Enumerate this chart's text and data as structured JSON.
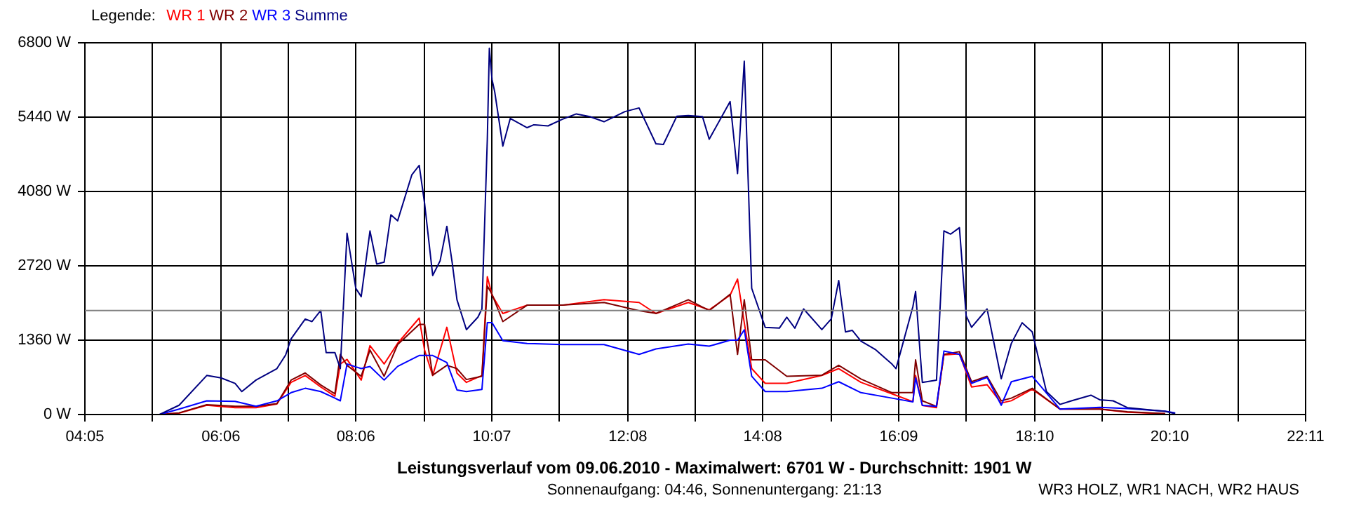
{
  "chart_data": {
    "type": "line",
    "title": "Leistungsverlauf vom 09.06.2010 - Maximalwert: 6701 W - Durchschnitt: 1901 W",
    "subtitle": "Sonnenaufgang: 04:46, Sonnenuntergang: 21:13",
    "legend_title": "Legende:",
    "grid": true,
    "line_style": "solid",
    "annotations": [
      "WR3 HOLZ, WR1 NACH, WR2 HAUS"
    ],
    "xlim": [
      4.083,
      22.183
    ],
    "xticks": [
      {
        "value": 4.083,
        "label": "04:05"
      },
      {
        "value": 5.092,
        "label": null
      },
      {
        "value": 6.1,
        "label": "06:06"
      },
      {
        "value": 7.1,
        "label": null
      },
      {
        "value": 8.1,
        "label": "08:06"
      },
      {
        "value": 9.108,
        "label": null
      },
      {
        "value": 10.117,
        "label": "10:07"
      },
      {
        "value": 11.125,
        "label": null
      },
      {
        "value": 12.133,
        "label": "12:08"
      },
      {
        "value": 13.133,
        "label": null
      },
      {
        "value": 14.133,
        "label": "14:08"
      },
      {
        "value": 15.142,
        "label": null
      },
      {
        "value": 16.15,
        "label": "16:09"
      },
      {
        "value": 17.158,
        "label": null
      },
      {
        "value": 18.167,
        "label": "18:10"
      },
      {
        "value": 19.167,
        "label": null
      },
      {
        "value": 20.167,
        "label": "20:10"
      },
      {
        "value": 21.175,
        "label": null
      },
      {
        "value": 22.183,
        "label": "22:11"
      }
    ],
    "ylim": [
      0,
      6800
    ],
    "yticks": [
      {
        "value": 0,
        "label": "0 W"
      },
      {
        "value": 1360,
        "label": "1360 W"
      },
      {
        "value": 2720,
        "label": "2720 W"
      },
      {
        "value": 4080,
        "label": "4080 W"
      },
      {
        "value": 5440,
        "label": "5440 W"
      },
      {
        "value": 6800,
        "label": "6800 W"
      }
    ],
    "ref_lines": [
      {
        "axis": "y",
        "value": 1901,
        "label": null,
        "color": "#808080"
      }
    ],
    "x": [
      4.67,
      5.19,
      5.48,
      5.89,
      6.31,
      6.62,
      6.93,
      7.14,
      7.35,
      7.58,
      7.79,
      7.87,
      7.97,
      8.18,
      8.31,
      8.52,
      8.72,
      9.04,
      9.12,
      9.24,
      9.45,
      9.6,
      9.74,
      9.97,
      10.05,
      10.12,
      10.28,
      10.64,
      11.16,
      11.78,
      12.3,
      12.55,
      13.03,
      13.34,
      13.65,
      13.76,
      13.86,
      13.97,
      14.17,
      14.49,
      15.01,
      15.26,
      15.59,
      16.05,
      16.36,
      16.4,
      16.5,
      16.71,
      16.82,
      17.05,
      17.23,
      17.46,
      17.67,
      17.82,
      18.13,
      18.54,
      19.13,
      19.54,
      20.1,
      20.25
    ],
    "series": [
      {
        "name": "WR 1",
        "color": "#ff0000",
        "values": [
          0,
          0,
          25,
          170,
          126,
          126,
          193,
          588,
          714,
          504,
          336,
          924,
          1008,
          630,
          1260,
          924,
          1302,
          1764,
          1176,
          714,
          1596,
          756,
          588,
          714,
          2520,
          2184,
          1848,
          2000,
          2000,
          2100,
          2050,
          1848,
          2050,
          1915,
          2184,
          2478,
          1680,
          840,
          571,
          571,
          714,
          840,
          588,
          378,
          235,
          714,
          168,
          126,
          1092,
          1109,
          504,
          546,
          210,
          252,
          462,
          100,
          100,
          42,
          17,
          null
        ]
      },
      {
        "name": "WR 2",
        "color": "#800000",
        "values": [
          0,
          0,
          30,
          180,
          150,
          150,
          200,
          630,
          760,
          540,
          380,
          1100,
          900,
          700,
          1180,
          700,
          1280,
          1650,
          1650,
          720,
          900,
          840,
          640,
          700,
          2350,
          2200,
          1700,
          2000,
          2000,
          2050,
          1900,
          1850,
          2100,
          1900,
          2200,
          1100,
          2100,
          1000,
          1000,
          700,
          720,
          900,
          650,
          400,
          400,
          1000,
          250,
          150,
          1100,
          1150,
          600,
          700,
          250,
          300,
          480,
          100,
          100,
          50,
          17,
          null
        ]
      },
      {
        "name": "WR 3",
        "color": "#0000ff",
        "values": [
          0,
          0,
          100,
          250,
          240,
          150,
          250,
          400,
          480,
          420,
          300,
          250,
          924,
          840,
          880,
          630,
          880,
          1080,
          1080,
          1080,
          950,
          450,
          420,
          460,
          1680,
          1680,
          1350,
          1300,
          1280,
          1280,
          1100,
          1200,
          1290,
          1250,
          1360,
          1360,
          1550,
          700,
          420,
          420,
          480,
          600,
          400,
          300,
          230,
          672,
          168,
          150,
          1160,
          1100,
          570,
          680,
          170,
          600,
          700,
          100,
          130,
          110,
          60,
          30
        ]
      },
      {
        "name": "Summe",
        "color": "#000080",
        "x": [
          4.67,
          5.19,
          5.48,
          5.89,
          6.1,
          6.31,
          6.41,
          6.62,
          6.93,
          7.06,
          7.14,
          7.35,
          7.45,
          7.58,
          7.66,
          7.79,
          7.87,
          7.97,
          8.1,
          8.18,
          8.31,
          8.41,
          8.52,
          8.62,
          8.72,
          8.93,
          9.04,
          9.12,
          9.24,
          9.35,
          9.45,
          9.53,
          9.6,
          9.74,
          9.91,
          9.97,
          10.05,
          10.08,
          10.12,
          10.16,
          10.28,
          10.39,
          10.64,
          10.74,
          10.95,
          11.16,
          11.37,
          11.57,
          11.78,
          12.09,
          12.3,
          12.55,
          12.66,
          12.86,
          13.03,
          13.24,
          13.34,
          13.65,
          13.76,
          13.86,
          13.97,
          14.17,
          14.38,
          14.49,
          14.61,
          14.74,
          15.01,
          15.15,
          15.26,
          15.36,
          15.46,
          15.59,
          15.8,
          16.05,
          16.11,
          16.36,
          16.4,
          16.5,
          16.71,
          16.82,
          16.92,
          17.05,
          17.15,
          17.23,
          17.46,
          17.67,
          17.82,
          17.98,
          18.13,
          18.34,
          18.54,
          18.71,
          19.0,
          19.13,
          19.33,
          19.54,
          20.1,
          20.25
        ],
        "values": [
          0,
          0,
          170,
          714,
          670,
          570,
          420,
          630,
          840,
          1090,
          1385,
          1746,
          1700,
          1905,
          1133,
          1133,
          840,
          3316,
          2309,
          2157,
          3358,
          2753,
          2787,
          3652,
          3543,
          4382,
          4558,
          3862,
          2544,
          2812,
          3442,
          2770,
          2099,
          1553,
          1780,
          1931,
          5037,
          6701,
          6128,
          5900,
          4911,
          5415,
          5247,
          5300,
          5280,
          5400,
          5499,
          5450,
          5356,
          5541,
          5608,
          4953,
          4940,
          5457,
          5470,
          5450,
          5037,
          5725,
          4407,
          6464,
          2309,
          1595,
          1580,
          1780,
          1580,
          1931,
          1553,
          1750,
          2451,
          1511,
          1540,
          1343,
          1192,
          923,
          839,
          1973,
          2250,
          588,
          630,
          3358,
          3300,
          3417,
          1805,
          1595,
          1931,
          655,
          1301,
          1679,
          1511,
          420,
          185,
          250,
          353,
          270,
          250,
          126,
          59,
          17
        ]
      }
    ]
  }
}
